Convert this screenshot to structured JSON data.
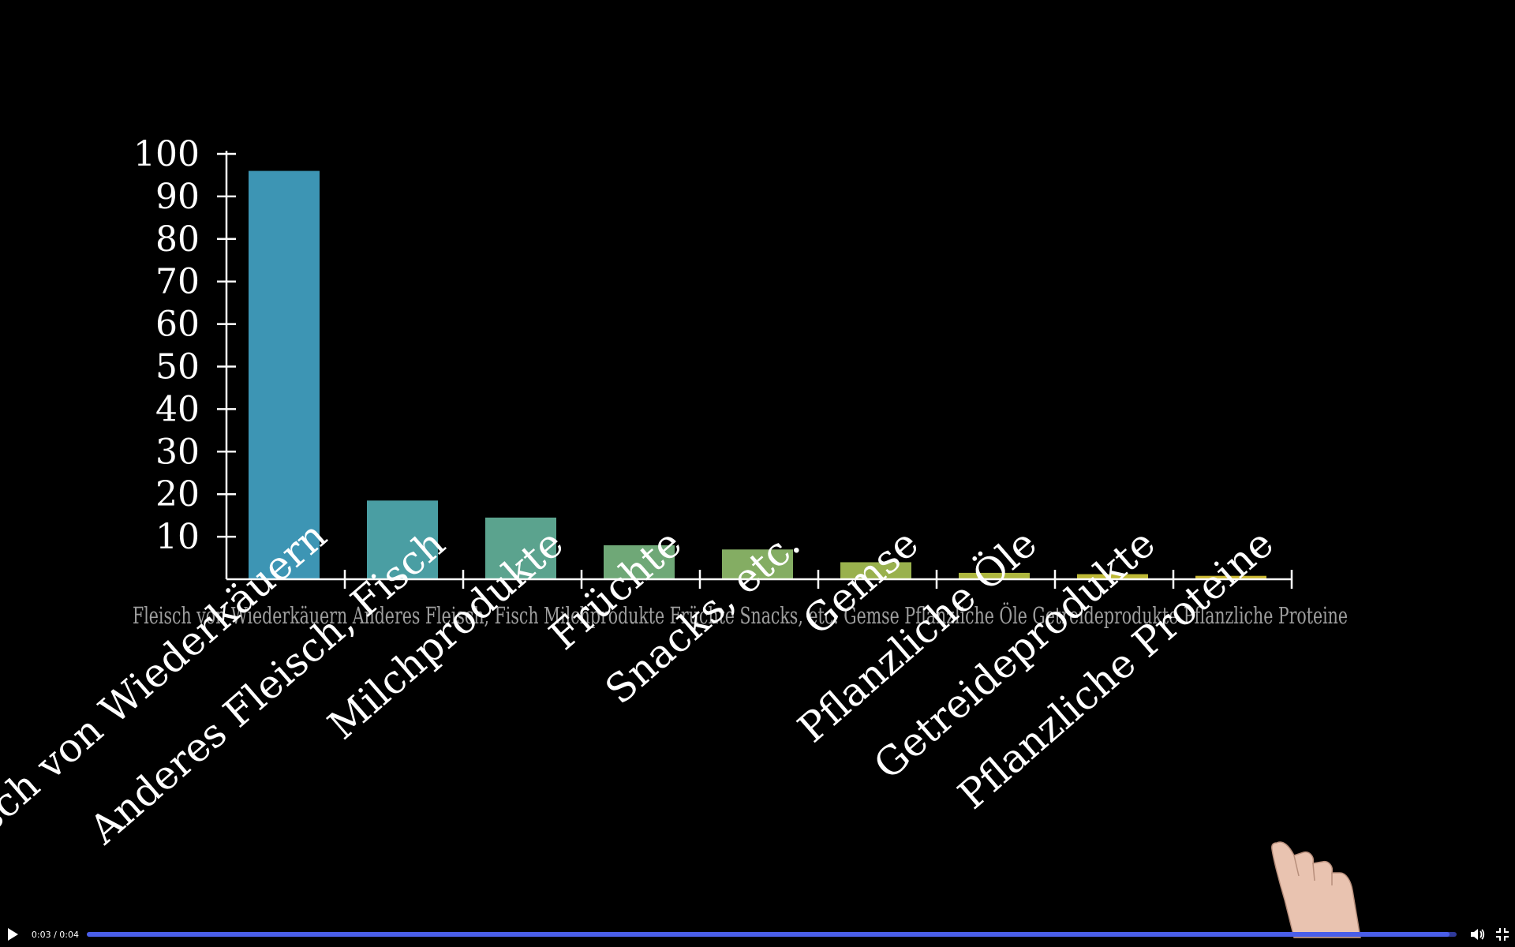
{
  "chart_data": {
    "type": "bar",
    "categories": [
      "Fleisch von Wiederkäuern",
      "Anderes Fleisch, Fisch",
      "Milchprodukte",
      "Früchte",
      "Snacks, etc.",
      "Gemse",
      "Pflanzliche Öle",
      "Getreideprodukte",
      "Pflanzliche Proteine"
    ],
    "values": [
      96,
      18.5,
      14.5,
      8,
      7,
      4,
      1.5,
      1.2,
      0.8
    ],
    "ylim": [
      0,
      100
    ],
    "yticks": [
      "10",
      "20",
      "30",
      "40",
      "50",
      "60",
      "70",
      "80",
      "90",
      "100"
    ],
    "ytick_values": [
      10,
      20,
      30,
      40,
      50,
      60,
      70,
      80,
      90,
      100
    ],
    "colors": [
      "#3d95b4",
      "#4a9ea3",
      "#5ba38e",
      "#6fa877",
      "#84ad63",
      "#99b14d",
      "#adb63e",
      "#bdb834",
      "#cab731"
    ],
    "flat_labels_row": "Fleisch von Wiederkäuern Anderes Fleisch, Fisch Milchprodukte Früchte Snacks, etc. Gemse Pflanzliche Öle Getreideprodukte Pflanzliche Proteine",
    "grid": false,
    "legend": "none"
  },
  "player": {
    "time": "0:03 / 0:04",
    "progress": 0.995,
    "icons": {
      "play": "play-icon",
      "volume": "volume-icon",
      "fullscreen": "exit-fullscreen-icon"
    }
  }
}
